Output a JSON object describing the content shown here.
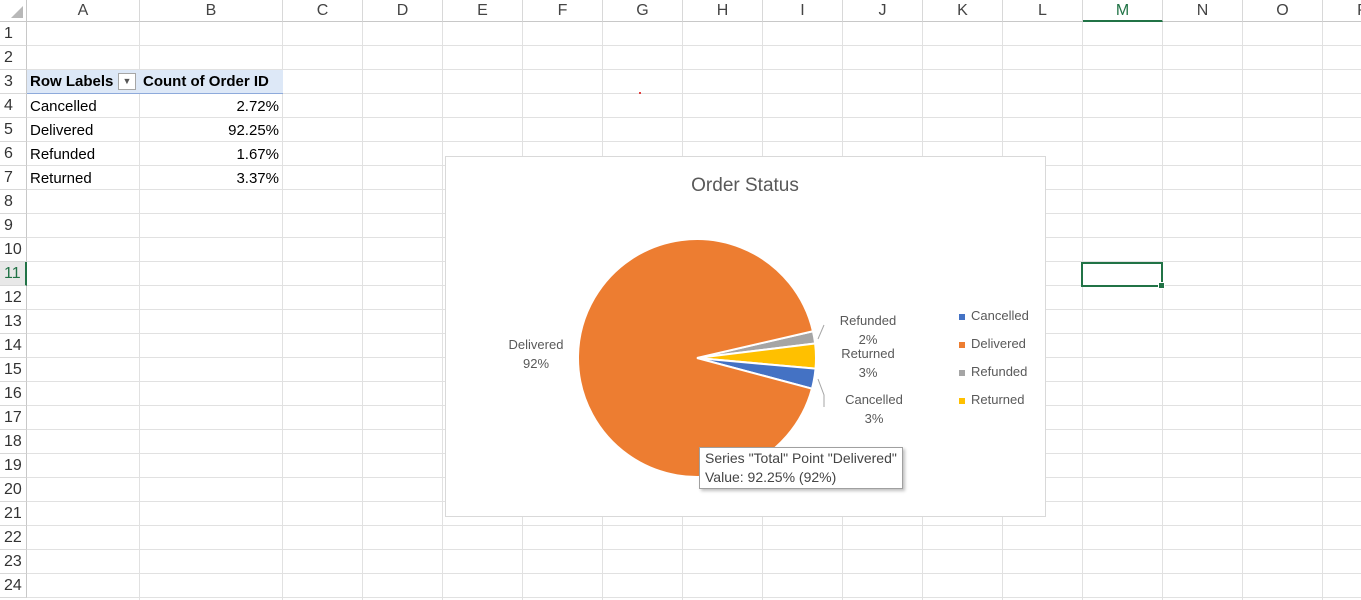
{
  "columns": [
    "A",
    "B",
    "C",
    "D",
    "E",
    "F",
    "G",
    "H",
    "I",
    "J",
    "K",
    "L",
    "M",
    "N",
    "O",
    "P"
  ],
  "rows": [
    "1",
    "2",
    "3",
    "4",
    "5",
    "6",
    "7",
    "8",
    "9",
    "10",
    "11",
    "12",
    "13",
    "14",
    "15",
    "16",
    "17",
    "18",
    "19",
    "20",
    "21",
    "22",
    "23",
    "24"
  ],
  "selected_column": "M",
  "selected_row": "11",
  "pivot": {
    "header_labels": "Row Labels",
    "header_value": "Count of Order ID",
    "filter_icon": "dropdown-arrow-icon",
    "rows": [
      {
        "label": "Cancelled",
        "value": "2.72%"
      },
      {
        "label": "Delivered",
        "value": "92.25%"
      },
      {
        "label": "Refunded",
        "value": "1.67%"
      },
      {
        "label": "Returned",
        "value": "3.37%"
      }
    ]
  },
  "chart_data": {
    "type": "pie",
    "title": "Order Status",
    "categories": [
      "Cancelled",
      "Delivered",
      "Refunded",
      "Returned"
    ],
    "values": [
      2.72,
      92.25,
      1.67,
      3.37
    ],
    "colors": [
      "#4472c4",
      "#ed7d31",
      "#a5a5a5",
      "#ffc000"
    ],
    "data_labels": [
      {
        "name": "Cancelled",
        "pct": "3%"
      },
      {
        "name": "Delivered",
        "pct": "92%"
      },
      {
        "name": "Refunded",
        "pct": "2%"
      },
      {
        "name": "Returned",
        "pct": "3%"
      }
    ],
    "legend_position": "right",
    "legend": [
      "Cancelled",
      "Delivered",
      "Refunded",
      "Returned"
    ]
  },
  "tooltip": {
    "line1": "Series \"Total\" Point \"Delivered\"",
    "line2": "Value: 92.25% (92%)"
  }
}
